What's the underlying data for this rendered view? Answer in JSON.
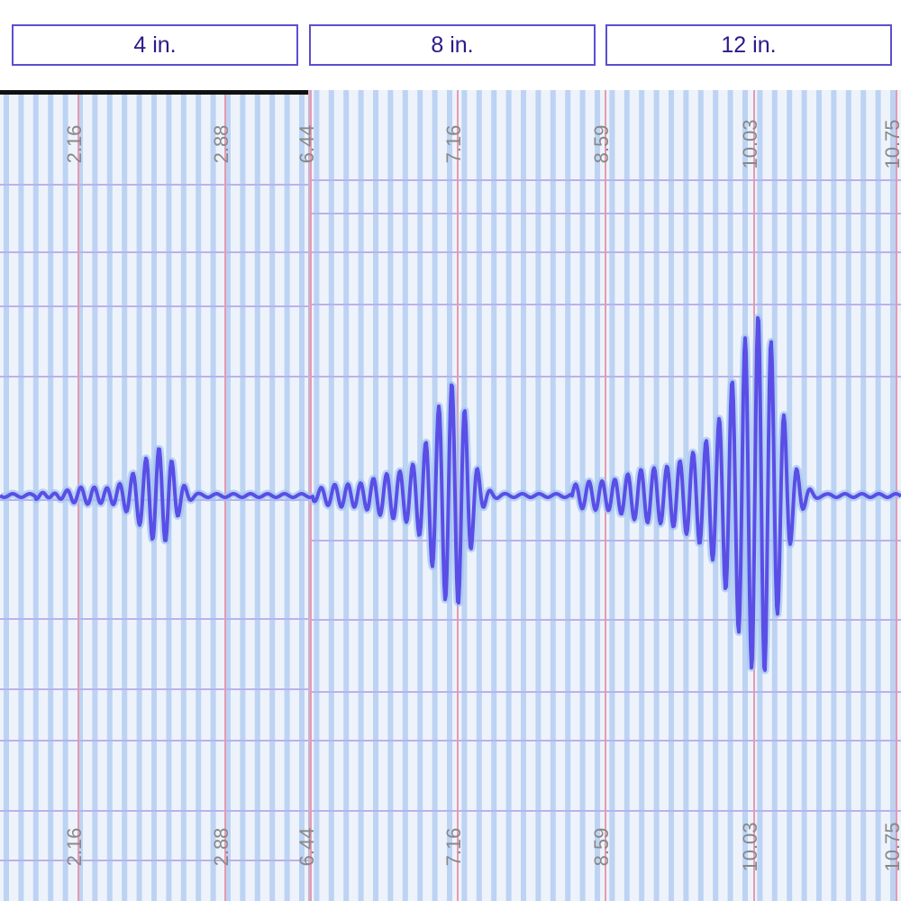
{
  "buttons": [
    "4 in.",
    "8 in.",
    "12 in."
  ],
  "left_panel": {
    "labels": [
      "2.16",
      "2.88"
    ]
  },
  "right_panel": {
    "labels": [
      "6.44",
      "7.16",
      "8.59",
      "10.03",
      "10.75"
    ]
  }
}
